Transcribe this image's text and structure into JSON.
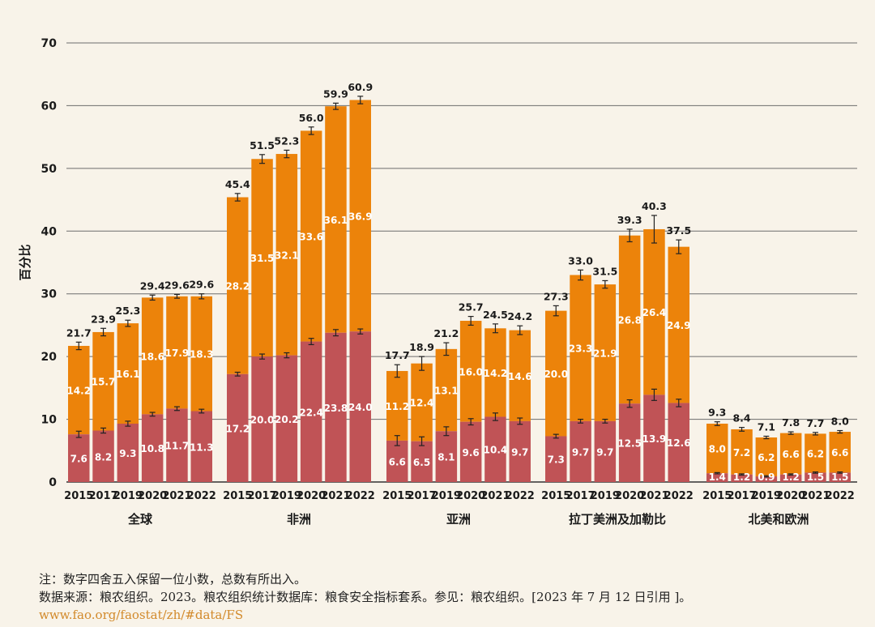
{
  "chart_data": {
    "type": "bar",
    "stacked": true,
    "ylabel": "百分比",
    "ylim": [
      0,
      70
    ],
    "yticks": [
      0,
      10,
      20,
      30,
      40,
      50,
      60,
      70
    ],
    "grid": true,
    "colors": {
      "bottom": "#c05356",
      "top": "#ec830a",
      "grid": "#6d6d6d",
      "text": "#1a1a1a",
      "inbar_text": "#ffffff"
    },
    "groups": [
      {
        "name": "全球",
        "years": [
          "2015",
          "2017",
          "2019",
          "2020",
          "2021",
          "2022"
        ],
        "severe": [
          7.6,
          8.2,
          9.3,
          10.8,
          11.7,
          11.3
        ],
        "moderate": [
          14.2,
          15.7,
          16.1,
          18.6,
          17.9,
          18.3
        ],
        "total": [
          21.7,
          23.9,
          25.3,
          29.4,
          29.6,
          29.6
        ],
        "err_severe": [
          0.5,
          0.4,
          0.4,
          0.3,
          0.3,
          0.3
        ],
        "err_total": [
          0.6,
          0.6,
          0.5,
          0.4,
          0.3,
          0.4
        ]
      },
      {
        "name": "非洲",
        "years": [
          "2015",
          "2017",
          "2019",
          "2020",
          "2021",
          "2022"
        ],
        "severe": [
          17.2,
          20.0,
          20.2,
          22.4,
          23.8,
          24.0
        ],
        "moderate": [
          28.2,
          31.5,
          32.1,
          33.6,
          36.1,
          36.9
        ],
        "total": [
          45.4,
          51.5,
          52.3,
          56.0,
          59.9,
          60.9
        ],
        "err_severe": [
          0.3,
          0.4,
          0.4,
          0.5,
          0.5,
          0.4
        ],
        "err_total": [
          0.6,
          0.7,
          0.6,
          0.6,
          0.5,
          0.6
        ]
      },
      {
        "name": "亚洲",
        "years": [
          "2015",
          "2017",
          "2019",
          "2020",
          "2021",
          "2022"
        ],
        "severe": [
          6.6,
          6.5,
          8.1,
          9.6,
          10.4,
          9.7
        ],
        "moderate": [
          11.2,
          12.4,
          13.1,
          16.0,
          14.2,
          14.6
        ],
        "total": [
          17.7,
          18.9,
          21.2,
          25.7,
          24.5,
          24.2
        ],
        "err_severe": [
          0.8,
          0.7,
          0.7,
          0.5,
          0.6,
          0.5
        ],
        "err_total": [
          1.0,
          1.1,
          1.0,
          0.7,
          0.7,
          0.7
        ]
      },
      {
        "name": "拉丁美洲及加勒比",
        "years": [
          "2015",
          "2017",
          "2019",
          "2020",
          "2021",
          "2022"
        ],
        "severe": [
          7.3,
          9.7,
          9.7,
          12.5,
          13.9,
          12.6
        ],
        "moderate": [
          20.0,
          23.3,
          21.9,
          26.8,
          26.4,
          24.9
        ],
        "total": [
          27.3,
          33.0,
          31.5,
          39.3,
          40.3,
          37.5
        ],
        "err_severe": [
          0.3,
          0.3,
          0.3,
          0.6,
          0.9,
          0.6
        ],
        "err_total": [
          0.8,
          0.8,
          0.6,
          1.0,
          2.2,
          1.1
        ]
      },
      {
        "name": "北美和欧洲",
        "years": [
          "2015",
          "2017",
          "2019",
          "2020",
          "2021",
          "2022"
        ],
        "severe": [
          1.4,
          1.2,
          0.9,
          1.2,
          1.5,
          1.5
        ],
        "moderate": [
          8.0,
          7.2,
          6.2,
          6.6,
          6.2,
          6.6
        ],
        "total": [
          9.3,
          8.4,
          7.1,
          7.8,
          7.7,
          8.0
        ],
        "err_severe": [
          0.1,
          0.1,
          0.1,
          0.1,
          0.1,
          0.1
        ],
        "err_total": [
          0.3,
          0.3,
          0.2,
          0.2,
          0.2,
          0.2
        ]
      }
    ]
  },
  "notes": {
    "line1": "注：数字四舍五入保留一位小数，总数有所出入。",
    "line2": "数据来源：粮农组织。2023。粮农组织统计数据库：粮食安全指标套系。参见：粮农组织。[2023 年 7 月 12 日引用 ]。",
    "link": "www.fao.org/faostat/zh/#data/FS"
  }
}
